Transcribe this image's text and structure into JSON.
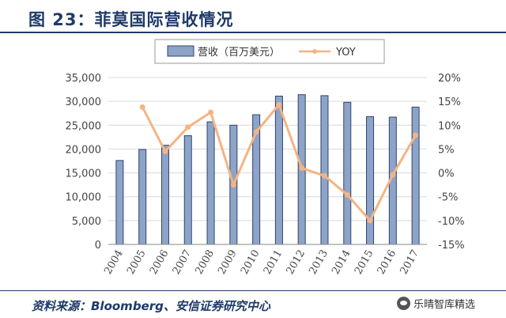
{
  "title": "图 23：菲莫国际营收情况",
  "source": "资料来源：Bloomberg、安信证券研究中心",
  "watermark": "乐晴智库精选",
  "colors": {
    "bar": "#8da3c8",
    "bar_stroke": "#2e4470",
    "line": "#f4b483",
    "title": "#1f3a68"
  },
  "chart_data": {
    "type": "bar",
    "categories": [
      "2004",
      "2005",
      "2006",
      "2007",
      "2008",
      "2009",
      "2010",
      "2011",
      "2012",
      "2013",
      "2014",
      "2015",
      "2016",
      "2017"
    ],
    "series": [
      {
        "name": "营收（百万美元）",
        "type": "bar",
        "axis": "left",
        "values": [
          17600,
          19900,
          20800,
          22800,
          25700,
          25000,
          27200,
          31100,
          31400,
          31200,
          29800,
          26800,
          26700,
          28800
        ]
      },
      {
        "name": "YOY",
        "type": "line",
        "axis": "right",
        "values": [
          null,
          13.8,
          4.5,
          9.6,
          12.7,
          -2.5,
          8.6,
          14.3,
          1.0,
          -0.6,
          -4.6,
          -10.0,
          -0.4,
          7.9
        ]
      }
    ],
    "y_left": {
      "lim": [
        0,
        35000
      ],
      "ticks": [
        "0",
        "5,000",
        "10,000",
        "15,000",
        "20,000",
        "25,000",
        "30,000",
        "35,000"
      ]
    },
    "y_right": {
      "lim": [
        -15,
        20
      ],
      "ticks": [
        "-15%",
        "-10%",
        "-5%",
        "0%",
        "5%",
        "10%",
        "15%",
        "20%"
      ]
    },
    "grid": true,
    "legend": "top"
  }
}
